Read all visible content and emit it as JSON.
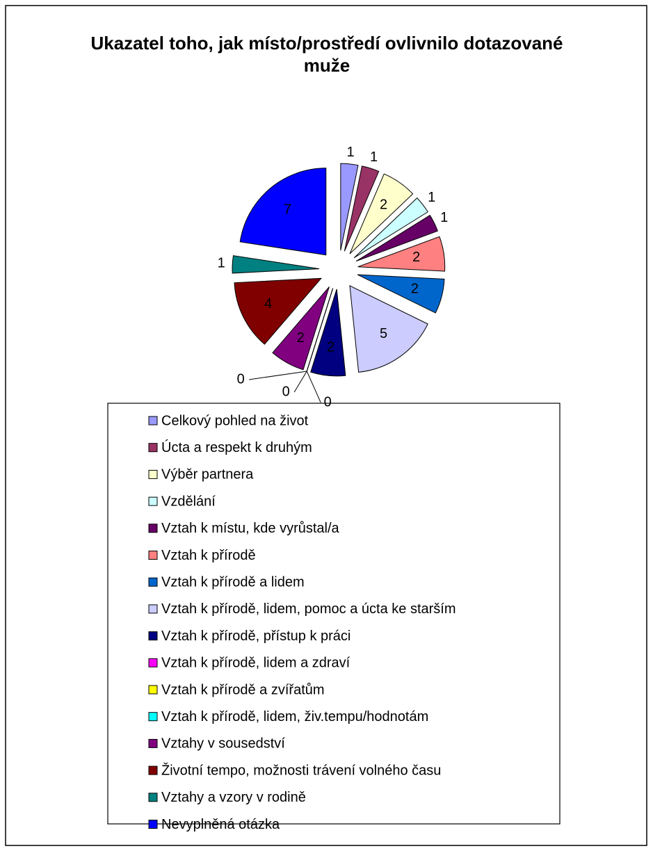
{
  "chart_data": {
    "type": "pie",
    "title": "Ukazatel toho, jak místo/prostředí ovlivnilo dotazované muže",
    "categories": [
      "Celkový pohled na život",
      "Úcta a respekt k druhým",
      "Výběr partnera",
      "Vzdělání",
      "Vztah k místu, kde vyrůstal/a",
      "Vztah k přírodě",
      "Vztah k přírodě a lidem",
      "Vztah k přírodě, lidem, pomoc a úcta ke starším",
      "Vztah k přírodě, přístup k práci",
      "Vztah k přírodě, lidem a zdraví",
      "Vztah k přírodě a zvířatům",
      "Vztah k přírodě, lidem, živ.tempu/hodnotám",
      "Vztahy v sousedství",
      "Životní tempo, možnosti trávení volného času",
      "Vztahy a vzory v rodině",
      "Nevyplněná otázka"
    ],
    "values": [
      1,
      1,
      2,
      1,
      1,
      2,
      2,
      5,
      2,
      0,
      0,
      0,
      2,
      4,
      1,
      7
    ],
    "colors": [
      "#9999ff",
      "#993366",
      "#ffffcc",
      "#ccffff",
      "#660066",
      "#ff8080",
      "#0066cc",
      "#ccccff",
      "#000080",
      "#ff00ff",
      "#ffff00",
      "#00ffff",
      "#800080",
      "#800000",
      "#008080",
      "#0000ff"
    ],
    "legend": "bottom"
  }
}
